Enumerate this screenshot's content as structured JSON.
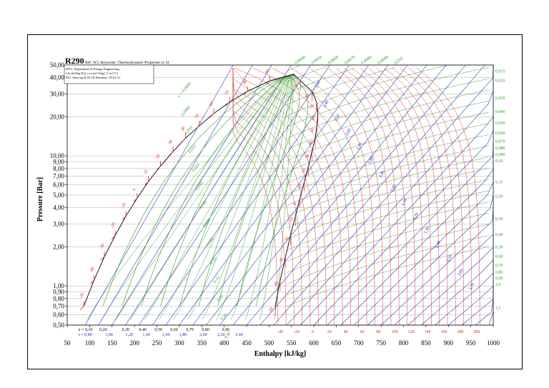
{
  "chart_data": {
    "type": "line",
    "title": "R290",
    "reference": "Ref: W.C.Reynolds: Thermodynamic Properties in SI",
    "info_box": [
      "DTU, Department of Energy Engineering",
      "s in [kJ/(kg K)], v in [m^3/kg], T in [°C]",
      "M.J. Skovrup & H.J.H Knudsen. 19-01-21"
    ],
    "xlabel": "Enthalpy [kJ/kg]",
    "ylabel": "Pressure [Bar]",
    "xlim": [
      50,
      1000
    ],
    "ylim": [
      0.5,
      50
    ],
    "yscale": "log",
    "x_ticks": [
      "50",
      "100",
      "150",
      "200",
      "250",
      "300",
      "350",
      "400",
      "450",
      "500",
      "550",
      "600",
      "650",
      "700",
      "750",
      "800",
      "850",
      "900",
      "950",
      "1000"
    ],
    "y_ticks": [
      {
        "v": 50,
        "label": "50,00"
      },
      {
        "v": 40,
        "label": "40,00"
      },
      {
        "v": 30,
        "label": "30,00"
      },
      {
        "v": 20,
        "label": "20,00"
      },
      {
        "v": 10,
        "label": "10,00"
      },
      {
        "v": 9,
        "label": "9,00"
      },
      {
        "v": 8,
        "label": "8,00"
      },
      {
        "v": 7,
        "label": "7,00"
      },
      {
        "v": 6,
        "label": "6,00"
      },
      {
        "v": 5,
        "label": "5,00"
      },
      {
        "v": 4,
        "label": "4,00"
      },
      {
        "v": 3,
        "label": "3,00"
      },
      {
        "v": 2,
        "label": "2,00"
      },
      {
        "v": 1,
        "label": "1,00"
      },
      {
        "v": 0.9,
        "label": "0,90"
      },
      {
        "v": 0.8,
        "label": "0,80"
      },
      {
        "v": 0.7,
        "label": "0,70"
      },
      {
        "v": 0.6,
        "label": "0,60"
      },
      {
        "v": 0.5,
        "label": "0,50"
      }
    ],
    "quality_labels": [
      "x = 0,10",
      "0,20",
      "0,30",
      "0,40",
      "0,50",
      "0,60",
      "0,70",
      "0,80",
      "0,90"
    ],
    "entropy_bottom_labels": [
      "s = 0,80",
      "1,00",
      "1,20",
      "1,40",
      "1,60",
      "1,80",
      "2,00",
      "2,20",
      "2,40"
    ],
    "temperature_bottom_labels": [
      "-40",
      "-20",
      "0",
      "20",
      "40",
      "60",
      "80",
      "100",
      "120",
      "140",
      "160",
      "180",
      "200"
    ],
    "specific_volume_right_labels": [
      "0,015",
      "0,020",
      "0,030",
      "0,040",
      "0,050",
      "0,060",
      "0,070",
      "0,080",
      "0,090",
      "0,10",
      "0,15",
      "0,20",
      "0,30",
      "0,40",
      "0,50",
      "0,60",
      "0,70",
      "0,80",
      "0,90",
      "1,0",
      "1,5"
    ],
    "specific_volume_top_labels": [
      "0,0040",
      "0,0050",
      "0,0060",
      "0,0070",
      "0,0080",
      "0,0090",
      "0,010"
    ],
    "saturation_temperature_labels": [
      "-50",
      "-40",
      "-30",
      "-20",
      "-10",
      "0",
      "10",
      "20",
      "30",
      "40",
      "50",
      "60",
      "70",
      "80",
      "90"
    ],
    "vapor_temperature_labels": [
      "-50",
      "-40",
      "-30",
      "-20",
      "-10",
      "0",
      "10",
      "20",
      "30",
      "40",
      "50",
      "60",
      "70",
      "80",
      "90"
    ],
    "entropy_vapor_labels": [
      "s = 2,30",
      "2,40",
      "2,50",
      "2,60",
      "2,70",
      "2,80",
      "2,90",
      "3,00",
      "3,10",
      "3,20",
      "3,30",
      "3,40",
      "3,50",
      "3,60",
      "3,70"
    ],
    "liquid_volume_labels": [
      "v = 0,0060",
      "0,0080",
      "0,010",
      "0,015",
      "0,020",
      "0,030",
      "0,040",
      "0,060",
      "0,080",
      "0,10",
      "0,15",
      "0,20",
      "0,30",
      "0,40"
    ],
    "saturation_liquid": [
      {
        "t": -50,
        "h": 87
      },
      {
        "t": -40,
        "h": 110
      },
      {
        "t": -30,
        "h": 133
      },
      {
        "t": -20,
        "h": 157
      },
      {
        "t": -10,
        "h": 181
      },
      {
        "t": 0,
        "h": 206
      },
      {
        "t": 10,
        "h": 231
      },
      {
        "t": 20,
        "h": 258
      },
      {
        "t": 30,
        "h": 286
      },
      {
        "t": 40,
        "h": 314
      },
      {
        "t": 50,
        "h": 345
      },
      {
        "t": 60,
        "h": 377
      },
      {
        "t": 70,
        "h": 412
      },
      {
        "t": 80,
        "h": 452
      },
      {
        "t": 90,
        "h": 502
      }
    ],
    "saturation_vapor": [
      {
        "t": -50,
        "h": 514
      },
      {
        "t": -40,
        "h": 525
      },
      {
        "t": -30,
        "h": 537
      },
      {
        "t": -20,
        "h": 548
      },
      {
        "t": -10,
        "h": 559
      },
      {
        "t": 0,
        "h": 569
      },
      {
        "t": 10,
        "h": 579
      },
      {
        "t": 20,
        "h": 588
      },
      {
        "t": 30,
        "h": 596
      },
      {
        "t": 40,
        "h": 603
      },
      {
        "t": 50,
        "h": 607
      },
      {
        "t": 60,
        "h": 609
      },
      {
        "t": 70,
        "h": 606
      },
      {
        "t": 80,
        "h": 596
      },
      {
        "t": 90,
        "h": 570
      }
    ],
    "saturation_pressure": [
      {
        "t": -50,
        "p": 0.7
      },
      {
        "t": -40,
        "p": 1.11
      },
      {
        "t": -30,
        "p": 1.68
      },
      {
        "t": -20,
        "p": 2.44
      },
      {
        "t": -10,
        "p": 3.45
      },
      {
        "t": 0,
        "p": 4.74
      },
      {
        "t": 10,
        "p": 6.36
      },
      {
        "t": 20,
        "p": 8.36
      },
      {
        "t": 30,
        "p": 10.8
      },
      {
        "t": 40,
        "p": 13.7
      },
      {
        "t": 50,
        "p": 17.1
      },
      {
        "t": 60,
        "p": 21.2
      },
      {
        "t": 70,
        "p": 25.9
      },
      {
        "t": 80,
        "p": 31.4
      },
      {
        "t": 90,
        "p": 37.8
      }
    ],
    "critical_point": {
      "h": 555,
      "p": 42.5
    }
  }
}
